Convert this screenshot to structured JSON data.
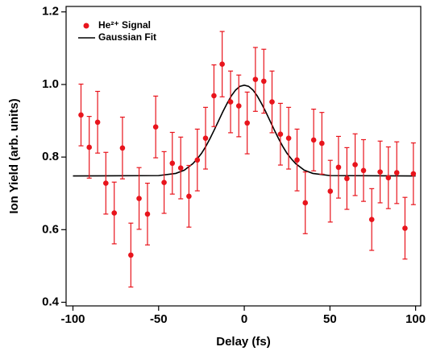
{
  "chart_data": {
    "type": "scatter",
    "xlabel": "Delay (fs)",
    "ylabel": "Ion Yield (arb. units)",
    "xlim": [
      -104,
      103
    ],
    "ylim": [
      0.39,
      1.215
    ],
    "xticks": [
      -100,
      -50,
      0,
      50,
      100
    ],
    "yticks": [
      0.4,
      0.6,
      0.8,
      {
        "value": 1,
        "label": "1.0"
      },
      1.2
    ],
    "legend": "upper-left",
    "series": [
      {
        "name": "He²⁺ Signal",
        "type": "errorbar",
        "color": "#e8141c",
        "x": [
          -95.3,
          -90.5,
          -85.6,
          -80.8,
          -75.9,
          -71.1,
          -66.2,
          -61.4,
          -56.5,
          -51.7,
          -46.8,
          -42.0,
          -37.1,
          -32.3,
          -27.4,
          -22.6,
          -17.7,
          -12.9,
          -8.0,
          -3.2,
          1.7,
          6.5,
          11.4,
          16.2,
          21.1,
          25.9,
          30.8,
          35.6,
          40.5,
          45.3,
          50.2,
          55.0,
          59.9,
          64.7,
          69.6,
          74.4,
          79.3,
          84.1,
          89.0,
          93.8,
          98.7
        ],
        "values": [
          0.916,
          0.827,
          0.896,
          0.728,
          0.646,
          0.825,
          0.53,
          0.686,
          0.643,
          0.883,
          0.73,
          0.783,
          0.77,
          0.692,
          0.792,
          0.852,
          0.969,
          1.056,
          0.952,
          0.941,
          0.894,
          1.014,
          1.009,
          0.952,
          0.863,
          0.852,
          0.792,
          0.674,
          0.847,
          0.838,
          0.706,
          0.772,
          0.741,
          0.779,
          0.763,
          0.628,
          0.759,
          0.743,
          0.757,
          0.604,
          0.754
        ],
        "errors": [
          0.085,
          0.085,
          0.085,
          0.085,
          0.085,
          0.085,
          0.088,
          0.085,
          0.085,
          0.085,
          0.085,
          0.085,
          0.085,
          0.085,
          0.085,
          0.085,
          0.085,
          0.09,
          0.085,
          0.085,
          0.085,
          0.088,
          0.088,
          0.085,
          0.085,
          0.085,
          0.085,
          0.085,
          0.085,
          0.085,
          0.085,
          0.085,
          0.085,
          0.085,
          0.085,
          0.085,
          0.085,
          0.085,
          0.085,
          0.085,
          0.085
        ]
      },
      {
        "name": "Gaussian Fit",
        "type": "line",
        "color": "#000000",
        "x": [
          -100,
          -50,
          -40,
          -35,
          -30,
          -27.5,
          -25,
          -22.5,
          -20,
          -17.5,
          -15,
          -12.5,
          -10,
          -7.5,
          -5,
          -2.5,
          0,
          2.5,
          5,
          7.5,
          10,
          12.5,
          15,
          17.5,
          20,
          22.5,
          25,
          27.5,
          30,
          35,
          40,
          50,
          100
        ],
        "values": [
          0.748,
          0.749,
          0.755,
          0.764,
          0.782,
          0.795,
          0.81,
          0.829,
          0.851,
          0.875,
          0.9,
          0.925,
          0.948,
          0.969,
          0.985,
          0.995,
          0.998,
          0.995,
          0.985,
          0.969,
          0.948,
          0.925,
          0.9,
          0.875,
          0.851,
          0.829,
          0.81,
          0.795,
          0.782,
          0.764,
          0.755,
          0.749,
          0.748
        ]
      }
    ]
  }
}
